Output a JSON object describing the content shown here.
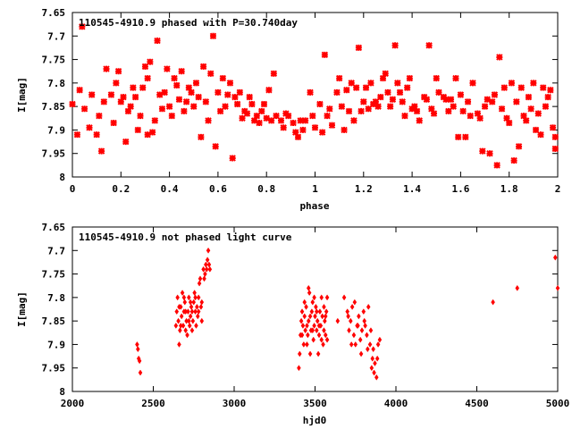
{
  "chart_data": [
    {
      "type": "scatter",
      "title": "110545-4910.9 phased with P=30.740day",
      "xlabel": "phase",
      "ylabel": "I[mag]",
      "xlim": [
        0,
        2
      ],
      "ylim": [
        7.65,
        8.0
      ],
      "y_inverted": true,
      "xticks": [
        0,
        0.2,
        0.4,
        0.6,
        0.8,
        1,
        1.2,
        1.4,
        1.6,
        1.8,
        2
      ],
      "xtick_labels": [
        "0",
        "0.2",
        "0.4",
        "0.6",
        "0.8",
        "1",
        "1.2",
        "1.4",
        "1.6",
        "1.8",
        "2"
      ],
      "yticks": [
        7.65,
        7.7,
        7.75,
        7.8,
        7.85,
        7.9,
        7.95,
        8
      ],
      "ytick_labels": [
        "7.65",
        "7.7",
        "7.75",
        "7.8",
        "7.85",
        "7.9",
        "7.95",
        "8"
      ],
      "grid": false,
      "color": "#ff0000",
      "marker": "star",
      "points": [
        [
          0.0,
          7.845
        ],
        [
          0.02,
          7.91
        ],
        [
          0.03,
          7.815
        ],
        [
          0.04,
          7.68
        ],
        [
          0.05,
          7.855
        ],
        [
          0.07,
          7.895
        ],
        [
          0.08,
          7.825
        ],
        [
          0.1,
          7.91
        ],
        [
          0.11,
          7.87
        ],
        [
          0.12,
          7.945
        ],
        [
          0.13,
          7.84
        ],
        [
          0.14,
          7.77
        ],
        [
          0.16,
          7.825
        ],
        [
          0.17,
          7.885
        ],
        [
          0.18,
          7.8
        ],
        [
          0.19,
          7.775
        ],
        [
          0.2,
          7.84
        ],
        [
          0.21,
          7.83
        ],
        [
          0.22,
          7.925
        ],
        [
          0.23,
          7.86
        ],
        [
          0.24,
          7.85
        ],
        [
          0.25,
          7.81
        ],
        [
          0.26,
          7.83
        ],
        [
          0.27,
          7.9
        ],
        [
          0.28,
          7.87
        ],
        [
          0.29,
          7.81
        ],
        [
          0.3,
          7.765
        ],
        [
          0.31,
          7.91
        ],
        [
          0.31,
          7.79
        ],
        [
          0.32,
          7.755
        ],
        [
          0.33,
          7.905
        ],
        [
          0.34,
          7.88
        ],
        [
          0.35,
          7.71
        ],
        [
          0.36,
          7.825
        ],
        [
          0.37,
          7.855
        ],
        [
          0.38,
          7.82
        ],
        [
          0.39,
          7.77
        ],
        [
          0.4,
          7.85
        ],
        [
          0.41,
          7.87
        ],
        [
          0.42,
          7.79
        ],
        [
          0.43,
          7.805
        ],
        [
          0.44,
          7.835
        ],
        [
          0.45,
          7.775
        ],
        [
          0.46,
          7.86
        ],
        [
          0.47,
          7.84
        ],
        [
          0.48,
          7.81
        ],
        [
          0.49,
          7.82
        ],
        [
          0.5,
          7.85
        ],
        [
          0.51,
          7.8
        ],
        [
          0.52,
          7.83
        ],
        [
          0.53,
          7.915
        ],
        [
          0.54,
          7.765
        ],
        [
          0.55,
          7.84
        ],
        [
          0.56,
          7.88
        ],
        [
          0.57,
          7.78
        ],
        [
          0.58,
          7.7
        ],
        [
          0.59,
          7.935
        ],
        [
          0.6,
          7.82
        ],
        [
          0.61,
          7.86
        ],
        [
          0.62,
          7.79
        ],
        [
          0.63,
          7.85
        ],
        [
          0.64,
          7.825
        ],
        [
          0.65,
          7.8
        ],
        [
          0.66,
          7.96
        ],
        [
          0.67,
          7.83
        ],
        [
          0.68,
          7.845
        ],
        [
          0.69,
          7.82
        ],
        [
          0.7,
          7.875
        ],
        [
          0.71,
          7.86
        ],
        [
          0.72,
          7.865
        ],
        [
          0.73,
          7.83
        ],
        [
          0.74,
          7.845
        ],
        [
          0.75,
          7.88
        ],
        [
          0.76,
          7.87
        ],
        [
          0.77,
          7.885
        ],
        [
          0.78,
          7.86
        ],
        [
          0.79,
          7.845
        ],
        [
          0.8,
          7.875
        ],
        [
          0.81,
          7.815
        ],
        [
          0.82,
          7.88
        ],
        [
          0.83,
          7.78
        ],
        [
          0.84,
          7.87
        ],
        [
          0.86,
          7.88
        ],
        [
          0.87,
          7.895
        ],
        [
          0.88,
          7.865
        ],
        [
          0.89,
          7.87
        ],
        [
          0.91,
          7.885
        ],
        [
          0.92,
          7.905
        ],
        [
          0.93,
          7.915
        ],
        [
          0.94,
          7.88
        ],
        [
          0.95,
          7.9
        ],
        [
          0.96,
          7.88
        ],
        [
          0.98,
          7.82
        ],
        [
          0.99,
          7.87
        ],
        [
          1.0,
          7.895
        ],
        [
          1.02,
          7.845
        ],
        [
          1.03,
          7.905
        ],
        [
          1.04,
          7.74
        ],
        [
          1.05,
          7.87
        ],
        [
          1.06,
          7.855
        ],
        [
          1.07,
          7.89
        ],
        [
          1.09,
          7.82
        ],
        [
          1.1,
          7.79
        ],
        [
          1.11,
          7.85
        ],
        [
          1.12,
          7.9
        ],
        [
          1.13,
          7.815
        ],
        [
          1.14,
          7.86
        ],
        [
          1.15,
          7.8
        ],
        [
          1.16,
          7.88
        ],
        [
          1.17,
          7.81
        ],
        [
          1.18,
          7.725
        ],
        [
          1.19,
          7.86
        ],
        [
          1.2,
          7.84
        ],
        [
          1.21,
          7.81
        ],
        [
          1.22,
          7.855
        ],
        [
          1.23,
          7.8
        ],
        [
          1.24,
          7.845
        ],
        [
          1.25,
          7.84
        ],
        [
          1.26,
          7.85
        ],
        [
          1.27,
          7.83
        ],
        [
          1.28,
          7.79
        ],
        [
          1.29,
          7.78
        ],
        [
          1.3,
          7.82
        ],
        [
          1.31,
          7.85
        ],
        [
          1.32,
          7.835
        ],
        [
          1.33,
          7.72
        ],
        [
          1.34,
          7.8
        ],
        [
          1.35,
          7.82
        ],
        [
          1.36,
          7.84
        ],
        [
          1.37,
          7.87
        ],
        [
          1.38,
          7.81
        ],
        [
          1.39,
          7.79
        ],
        [
          1.4,
          7.855
        ],
        [
          1.41,
          7.85
        ],
        [
          1.42,
          7.86
        ],
        [
          1.43,
          7.88
        ],
        [
          1.45,
          7.83
        ],
        [
          1.46,
          7.835
        ],
        [
          1.47,
          7.72
        ],
        [
          1.48,
          7.855
        ],
        [
          1.49,
          7.865
        ],
        [
          1.5,
          7.79
        ],
        [
          1.51,
          7.82
        ],
        [
          1.53,
          7.83
        ],
        [
          1.54,
          7.835
        ],
        [
          1.55,
          7.86
        ],
        [
          1.56,
          7.835
        ],
        [
          1.57,
          7.85
        ],
        [
          1.58,
          7.79
        ],
        [
          1.59,
          7.915
        ],
        [
          1.6,
          7.825
        ],
        [
          1.61,
          7.86
        ],
        [
          1.62,
          7.915
        ],
        [
          1.63,
          7.84
        ],
        [
          1.64,
          7.87
        ],
        [
          1.65,
          7.8
        ],
        [
          1.67,
          7.865
        ],
        [
          1.68,
          7.875
        ],
        [
          1.69,
          7.945
        ],
        [
          1.7,
          7.85
        ],
        [
          1.71,
          7.835
        ],
        [
          1.72,
          7.95
        ],
        [
          1.73,
          7.84
        ],
        [
          1.74,
          7.825
        ],
        [
          1.75,
          7.975
        ],
        [
          1.76,
          7.745
        ],
        [
          1.77,
          7.855
        ],
        [
          1.78,
          7.81
        ],
        [
          1.79,
          7.875
        ],
        [
          1.8,
          7.885
        ],
        [
          1.81,
          7.8
        ],
        [
          1.82,
          7.965
        ],
        [
          1.83,
          7.84
        ],
        [
          1.84,
          7.935
        ],
        [
          1.85,
          7.81
        ],
        [
          1.86,
          7.87
        ],
        [
          1.87,
          7.88
        ],
        [
          1.88,
          7.83
        ],
        [
          1.89,
          7.855
        ],
        [
          1.9,
          7.8
        ],
        [
          1.91,
          7.9
        ],
        [
          1.92,
          7.865
        ],
        [
          1.93,
          7.91
        ],
        [
          1.94,
          7.81
        ],
        [
          1.95,
          7.85
        ],
        [
          1.96,
          7.83
        ],
        [
          1.97,
          7.815
        ],
        [
          1.98,
          7.895
        ],
        [
          1.99,
          7.915
        ],
        [
          1.99,
          7.94
        ]
      ]
    },
    {
      "type": "scatter",
      "title": "110545-4910.9 not phased light curve",
      "xlabel": "hjd0",
      "ylabel": "I[mag]",
      "xlim": [
        2000,
        5000
      ],
      "ylim": [
        7.65,
        8.0
      ],
      "y_inverted": true,
      "xticks": [
        2000,
        2500,
        3000,
        3500,
        4000,
        4500,
        5000
      ],
      "xtick_labels": [
        "2000",
        "2500",
        "3000",
        "3500",
        "4000",
        "4500",
        "5000"
      ],
      "yticks": [
        7.65,
        7.7,
        7.75,
        7.8,
        7.85,
        7.9,
        7.95,
        8
      ],
      "ytick_labels": [
        "7.65",
        "7.7",
        "7.75",
        "7.8",
        "7.85",
        "7.9",
        "7.95",
        "8"
      ],
      "grid": false,
      "color": "#ff0000",
      "marker": "diamond",
      "points": [
        [
          2400,
          7.9
        ],
        [
          2405,
          7.91
        ],
        [
          2410,
          7.93
        ],
        [
          2415,
          7.935
        ],
        [
          2420,
          7.96
        ],
        [
          2640,
          7.86
        ],
        [
          2645,
          7.83
        ],
        [
          2650,
          7.8
        ],
        [
          2655,
          7.85
        ],
        [
          2660,
          7.9
        ],
        [
          2665,
          7.87
        ],
        [
          2670,
          7.82
        ],
        [
          2675,
          7.84
        ],
        [
          2680,
          7.79
        ],
        [
          2685,
          7.86
        ],
        [
          2690,
          7.83
        ],
        [
          2695,
          7.81
        ],
        [
          2700,
          7.87
        ],
        [
          2705,
          7.85
        ],
        [
          2710,
          7.88
        ],
        [
          2715,
          7.83
        ],
        [
          2720,
          7.8
        ],
        [
          2725,
          7.86
        ],
        [
          2730,
          7.84
        ],
        [
          2735,
          7.82
        ],
        [
          2740,
          7.87
        ],
        [
          2745,
          7.85
        ],
        [
          2750,
          7.81
        ],
        [
          2755,
          7.79
        ],
        [
          2760,
          7.83
        ],
        [
          2765,
          7.86
        ],
        [
          2770,
          7.82
        ],
        [
          2775,
          7.84
        ],
        [
          2780,
          7.8
        ],
        [
          2785,
          7.77
        ],
        [
          2790,
          7.76
        ],
        [
          2795,
          7.82
        ],
        [
          2800,
          7.85
        ],
        [
          2810,
          7.74
        ],
        [
          2815,
          7.76
        ],
        [
          2820,
          7.75
        ],
        [
          2825,
          7.73
        ],
        [
          2830,
          7.74
        ],
        [
          2835,
          7.72
        ],
        [
          2840,
          7.7
        ],
        [
          2845,
          7.73
        ],
        [
          2850,
          7.74
        ],
        [
          2660,
          7.82
        ],
        [
          2670,
          7.86
        ],
        [
          2690,
          7.8
        ],
        [
          2700,
          7.83
        ],
        [
          2720,
          7.85
        ],
        [
          2730,
          7.81
        ],
        [
          2740,
          7.83
        ],
        [
          2760,
          7.8
        ],
        [
          2780,
          7.83
        ],
        [
          2800,
          7.81
        ],
        [
          3400,
          7.95
        ],
        [
          3405,
          7.92
        ],
        [
          3410,
          7.88
        ],
        [
          3415,
          7.85
        ],
        [
          3420,
          7.83
        ],
        [
          3425,
          7.86
        ],
        [
          3430,
          7.9
        ],
        [
          3435,
          7.84
        ],
        [
          3440,
          7.87
        ],
        [
          3445,
          7.82
        ],
        [
          3450,
          7.86
        ],
        [
          3455,
          7.88
        ],
        [
          3460,
          7.85
        ],
        [
          3465,
          7.79
        ],
        [
          3470,
          7.84
        ],
        [
          3475,
          7.87
        ],
        [
          3480,
          7.83
        ],
        [
          3485,
          7.81
        ],
        [
          3490,
          7.89
        ],
        [
          3495,
          7.86
        ],
        [
          3500,
          7.84
        ],
        [
          3505,
          7.82
        ],
        [
          3510,
          7.87
        ],
        [
          3515,
          7.85
        ],
        [
          3520,
          7.92
        ],
        [
          3525,
          7.88
        ],
        [
          3530,
          7.83
        ],
        [
          3535,
          7.86
        ],
        [
          3540,
          7.8
        ],
        [
          3545,
          7.84
        ],
        [
          3550,
          7.9
        ],
        [
          3555,
          7.87
        ],
        [
          3560,
          7.85
        ],
        [
          3565,
          7.88
        ],
        [
          3570,
          7.83
        ],
        [
          3575,
          7.89
        ],
        [
          3420,
          7.88
        ],
        [
          3435,
          7.81
        ],
        [
          3450,
          7.9
        ],
        [
          3460,
          7.78
        ],
        [
          3470,
          7.92
        ],
        [
          3485,
          7.87
        ],
        [
          3495,
          7.8
        ],
        [
          3510,
          7.83
        ],
        [
          3525,
          7.86
        ],
        [
          3540,
          7.89
        ],
        [
          3555,
          7.82
        ],
        [
          3565,
          7.84
        ],
        [
          3575,
          7.8
        ],
        [
          3640,
          7.85
        ],
        [
          3680,
          7.8
        ],
        [
          3700,
          7.83
        ],
        [
          3710,
          7.87
        ],
        [
          3720,
          7.85
        ],
        [
          3730,
          7.82
        ],
        [
          3740,
          7.88
        ],
        [
          3750,
          7.9
        ],
        [
          3760,
          7.86
        ],
        [
          3770,
          7.84
        ],
        [
          3780,
          7.89
        ],
        [
          3790,
          7.87
        ],
        [
          3800,
          7.83
        ],
        [
          3810,
          7.86
        ],
        [
          3820,
          7.88
        ],
        [
          3830,
          7.82
        ],
        [
          3840,
          7.9
        ],
        [
          3850,
          7.95
        ],
        [
          3855,
          7.93
        ],
        [
          3860,
          7.91
        ],
        [
          3870,
          7.94
        ],
        [
          3880,
          7.97
        ],
        [
          3890,
          7.9
        ],
        [
          3900,
          7.89
        ],
        [
          3705,
          7.84
        ],
        [
          3725,
          7.9
        ],
        [
          3745,
          7.81
        ],
        [
          3765,
          7.86
        ],
        [
          3785,
          7.92
        ],
        [
          3805,
          7.85
        ],
        [
          3825,
          7.91
        ],
        [
          3845,
          7.87
        ],
        [
          3865,
          7.96
        ],
        [
          3885,
          7.93
        ],
        [
          4600,
          7.81
        ],
        [
          4750,
          7.78
        ],
        [
          4985,
          7.715
        ],
        [
          5000,
          7.78
        ]
      ]
    }
  ]
}
